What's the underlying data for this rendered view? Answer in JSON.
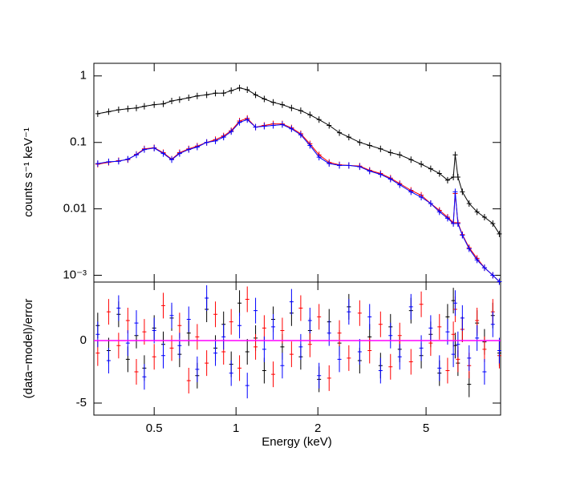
{
  "chart_data": [
    {
      "type": "line",
      "y_label": "counts s⁻¹ keV⁻¹",
      "xscale": "log",
      "yscale": "log",
      "x": [
        0.31,
        0.34,
        0.37,
        0.4,
        0.43,
        0.46,
        0.5,
        0.54,
        0.58,
        0.62,
        0.67,
        0.72,
        0.78,
        0.84,
        0.9,
        0.96,
        1.03,
        1.1,
        1.18,
        1.27,
        1.37,
        1.48,
        1.6,
        1.73,
        1.87,
        2.02,
        2.2,
        2.4,
        2.6,
        2.85,
        3.1,
        3.4,
        3.7,
        4.0,
        4.4,
        4.8,
        5.2,
        5.6,
        6.0,
        6.3,
        6.4,
        6.55,
        6.8,
        7.2,
        7.7,
        8.2,
        8.8,
        9.3
      ],
      "series": [
        {
          "color": "#000000",
          "values": [
            0.27,
            0.29,
            0.31,
            0.32,
            0.33,
            0.35,
            0.37,
            0.38,
            0.42,
            0.44,
            0.47,
            0.5,
            0.52,
            0.55,
            0.55,
            0.6,
            0.66,
            0.62,
            0.52,
            0.45,
            0.4,
            0.37,
            0.33,
            0.3,
            0.26,
            0.22,
            0.18,
            0.14,
            0.12,
            0.1,
            0.09,
            0.08,
            0.07,
            0.065,
            0.055,
            0.047,
            0.04,
            0.034,
            0.027,
            0.03,
            0.065,
            0.03,
            0.018,
            0.012,
            0.009,
            0.0075,
            0.006,
            0.0042
          ]
        },
        {
          "color": "#ff0000",
          "values": [
            0.047,
            0.05,
            0.053,
            0.055,
            0.066,
            0.08,
            0.083,
            0.07,
            0.056,
            0.07,
            0.08,
            0.088,
            0.1,
            0.11,
            0.125,
            0.15,
            0.21,
            0.23,
            0.17,
            0.18,
            0.19,
            0.19,
            0.165,
            0.135,
            0.095,
            0.065,
            0.05,
            0.046,
            0.045,
            0.044,
            0.038,
            0.034,
            0.029,
            0.024,
            0.019,
            0.016,
            0.012,
            0.0095,
            0.0075,
            0.0062,
            0.017,
            0.0062,
            0.0041,
            0.0026,
            0.0018,
            0.0013,
            0.001,
            0.0008
          ]
        },
        {
          "color": "#0000ff",
          "values": [
            0.048,
            0.051,
            0.052,
            0.056,
            0.065,
            0.078,
            0.082,
            0.068,
            0.055,
            0.068,
            0.078,
            0.085,
            0.1,
            0.105,
            0.12,
            0.145,
            0.2,
            0.22,
            0.17,
            0.175,
            0.18,
            0.185,
            0.16,
            0.13,
            0.09,
            0.06,
            0.048,
            0.045,
            0.045,
            0.043,
            0.037,
            0.033,
            0.028,
            0.023,
            0.018,
            0.015,
            0.012,
            0.009,
            0.0072,
            0.006,
            0.018,
            0.006,
            0.004,
            0.0025,
            0.0017,
            0.0013,
            0.001,
            0.0008
          ]
        }
      ],
      "xlim": [
        0.3,
        9.4
      ],
      "ylim": [
        0.00079,
        1.55
      ],
      "xticks": [
        0.5,
        1,
        2,
        5
      ],
      "yticks": [
        1,
        0.1,
        0.01,
        {
          "value": 0.001,
          "label": "10⁻³"
        }
      ]
    },
    {
      "type": "scatter",
      "x_label": "Energy (keV)",
      "y_label": "(data−model)/error",
      "xscale": "log",
      "reference_color": "#ff00ff",
      "x": [
        0.31,
        0.34,
        0.37,
        0.4,
        0.43,
        0.46,
        0.5,
        0.54,
        0.58,
        0.62,
        0.67,
        0.72,
        0.78,
        0.84,
        0.9,
        0.96,
        1.03,
        1.1,
        1.18,
        1.27,
        1.37,
        1.48,
        1.6,
        1.73,
        1.87,
        2.02,
        2.2,
        2.4,
        2.6,
        2.85,
        3.1,
        3.4,
        3.7,
        4.0,
        4.4,
        4.8,
        5.2,
        5.6,
        6.0,
        6.3,
        6.4,
        6.55,
        6.8,
        7.2,
        7.7,
        8.2,
        8.8,
        9.3
      ],
      "series": [
        {
          "color": "#000000",
          "values": [
            1.2,
            -0.8,
            2.1,
            -1.5,
            0.4,
            -2.2,
            1.0,
            -0.3,
            1.8,
            -1.1,
            0.6,
            -2.8,
            2.5,
            -0.6,
            1.3,
            -1.9,
            3.0,
            -0.9,
            0.2,
            -2.4,
            1.7,
            -0.5,
            2.2,
            -1.3,
            0.8,
            -3.1,
            1.5,
            -0.2,
            2.7,
            -1.6,
            0.3,
            -2.0,
            1.1,
            -0.7,
            2.4,
            -1.2,
            0.5,
            -2.6,
            1.9,
            3.2,
            -0.4,
            -1.8,
            0.9,
            -3.5,
            1.4,
            -0.1,
            2.0,
            -1.0
          ]
        },
        {
          "color": "#ff0000",
          "values": [
            -1.0,
            2.3,
            -0.4,
            1.6,
            -2.5,
            0.7,
            -1.3,
            2.8,
            -0.6,
            1.2,
            -3.2,
            0.3,
            -1.8,
            2.1,
            -0.9,
            1.5,
            -2.2,
            3.3,
            -0.5,
            1.0,
            -2.7,
            0.8,
            -1.1,
            2.6,
            -0.3,
            1.9,
            -3.0,
            0.6,
            -1.4,
            2.2,
            -0.8,
            1.3,
            -2.1,
            0.4,
            -1.7,
            2.9,
            -0.2,
            1.1,
            -2.4,
            0.5,
            2.5,
            -1.5,
            0.9,
            -2.0,
            1.6,
            -0.7,
            2.3,
            -1.2
          ]
        },
        {
          "color": "#0000ff",
          "values": [
            0.5,
            -1.6,
            2.6,
            -0.2,
            1.4,
            -2.9,
            0.8,
            -1.2,
            2.0,
            -0.4,
            1.7,
            -2.3,
            3.4,
            -1.0,
            0.3,
            -2.6,
            1.2,
            -3.6,
            2.4,
            -0.7,
            1.1,
            -2.0,
            3.1,
            -0.5,
            1.6,
            -2.8,
            0.6,
            -1.5,
            2.3,
            -0.9,
            1.9,
            -2.4,
            0.4,
            -1.3,
            2.7,
            -0.6,
            1.0,
            -2.2,
            0.7,
            -1.1,
            3.0,
            -0.3,
            1.8,
            -1.4,
            0.2,
            -2.5,
            1.3,
            -0.8
          ]
        }
      ],
      "xlim": [
        0.3,
        9.4
      ],
      "ylim": [
        -5.96,
        4.68
      ],
      "xticks": [
        0.5,
        1,
        2,
        5
      ],
      "yticks": [
        -5,
        0
      ]
    }
  ]
}
